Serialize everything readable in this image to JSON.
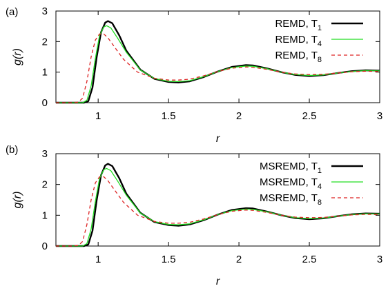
{
  "chart_data": [
    {
      "type": "line",
      "panel_label": "(a)",
      "xlabel": "r",
      "ylabel": "g(r)",
      "xlim": [
        0.7,
        3.0
      ],
      "ylim": [
        0,
        3
      ],
      "xticks": [
        "1",
        "1.5",
        "2",
        "2.5",
        "3"
      ],
      "yticks": [
        "0",
        "1",
        "2",
        "3"
      ],
      "legend_position": "top-right",
      "series": [
        {
          "name": "REMD, T1",
          "name_main": "REMD, T",
          "name_sub": "1",
          "color": "#000000",
          "style": "solid-thick",
          "x": [
            0.7,
            0.85,
            0.9,
            0.93,
            0.96,
            0.99,
            1.02,
            1.05,
            1.07,
            1.1,
            1.15,
            1.2,
            1.3,
            1.4,
            1.5,
            1.57,
            1.65,
            1.75,
            1.85,
            1.95,
            2.05,
            2.1,
            2.2,
            2.3,
            2.4,
            2.5,
            2.6,
            2.7,
            2.8,
            2.9,
            3.0
          ],
          "values": [
            0,
            0,
            0,
            0.05,
            0.5,
            1.5,
            2.3,
            2.62,
            2.67,
            2.6,
            2.2,
            1.7,
            1.08,
            0.78,
            0.68,
            0.66,
            0.7,
            0.84,
            1.02,
            1.17,
            1.23,
            1.22,
            1.12,
            1.0,
            0.91,
            0.87,
            0.9,
            0.97,
            1.03,
            1.06,
            1.05
          ]
        },
        {
          "name": "REMD, T4",
          "name_main": "REMD, T",
          "name_sub": "4",
          "color": "#22dd22",
          "style": "solid",
          "x": [
            0.7,
            0.85,
            0.89,
            0.92,
            0.95,
            0.98,
            1.01,
            1.04,
            1.06,
            1.09,
            1.14,
            1.2,
            1.3,
            1.4,
            1.5,
            1.57,
            1.65,
            1.75,
            1.85,
            1.95,
            2.05,
            2.1,
            2.2,
            2.3,
            2.4,
            2.5,
            2.6,
            2.7,
            2.8,
            2.9,
            3.0
          ],
          "values": [
            0,
            0,
            0,
            0.08,
            0.55,
            1.45,
            2.2,
            2.48,
            2.52,
            2.45,
            2.1,
            1.65,
            1.07,
            0.79,
            0.7,
            0.69,
            0.72,
            0.85,
            1.02,
            1.15,
            1.2,
            1.19,
            1.11,
            1.0,
            0.92,
            0.89,
            0.91,
            0.97,
            1.02,
            1.05,
            1.04
          ]
        },
        {
          "name": "REMD, T8",
          "name_main": "REMD, T",
          "name_sub": "8",
          "color": "#dd2222",
          "style": "dashed",
          "x": [
            0.7,
            0.82,
            0.86,
            0.89,
            0.92,
            0.95,
            0.98,
            1.01,
            1.04,
            1.07,
            1.12,
            1.18,
            1.28,
            1.4,
            1.5,
            1.57,
            1.65,
            1.75,
            1.85,
            1.95,
            2.05,
            2.1,
            2.2,
            2.3,
            2.4,
            2.5,
            2.6,
            2.7,
            2.8,
            2.9,
            3.0
          ],
          "values": [
            0,
            0,
            0.02,
            0.15,
            0.7,
            1.5,
            2.05,
            2.25,
            2.25,
            2.12,
            1.8,
            1.42,
            1.0,
            0.8,
            0.74,
            0.74,
            0.77,
            0.88,
            1.02,
            1.13,
            1.17,
            1.16,
            1.09,
            1.0,
            0.94,
            0.92,
            0.93,
            0.97,
            1.01,
            1.03,
            1.02
          ]
        }
      ]
    },
    {
      "type": "line",
      "panel_label": "(b)",
      "xlabel": "r",
      "ylabel": "g(r)",
      "xlim": [
        0.7,
        3.0
      ],
      "ylim": [
        0,
        3
      ],
      "xticks": [
        "1",
        "1.5",
        "2",
        "2.5",
        "3"
      ],
      "yticks": [
        "0",
        "1",
        "2",
        "3"
      ],
      "legend_position": "top-right",
      "series": [
        {
          "name": "MSREMD, T1",
          "name_main": "MSREMD, T",
          "name_sub": "1",
          "color": "#000000",
          "style": "solid-thick",
          "x": [
            0.7,
            0.85,
            0.9,
            0.93,
            0.96,
            0.99,
            1.02,
            1.05,
            1.07,
            1.1,
            1.15,
            1.2,
            1.3,
            1.4,
            1.5,
            1.57,
            1.65,
            1.75,
            1.85,
            1.95,
            2.05,
            2.1,
            2.2,
            2.3,
            2.4,
            2.5,
            2.6,
            2.7,
            2.8,
            2.9,
            3.0
          ],
          "values": [
            0,
            0,
            0,
            0.05,
            0.5,
            1.5,
            2.3,
            2.62,
            2.67,
            2.6,
            2.2,
            1.7,
            1.08,
            0.78,
            0.68,
            0.66,
            0.7,
            0.84,
            1.02,
            1.17,
            1.23,
            1.22,
            1.12,
            1.0,
            0.91,
            0.87,
            0.9,
            0.97,
            1.03,
            1.06,
            1.05
          ]
        },
        {
          "name": "MSREMD, T4",
          "name_main": "MSREMD, T",
          "name_sub": "4",
          "color": "#22dd22",
          "style": "solid",
          "x": [
            0.7,
            0.85,
            0.89,
            0.92,
            0.95,
            0.98,
            1.01,
            1.04,
            1.06,
            1.09,
            1.14,
            1.2,
            1.3,
            1.4,
            1.5,
            1.57,
            1.65,
            1.75,
            1.85,
            1.95,
            2.05,
            2.1,
            2.2,
            2.3,
            2.4,
            2.5,
            2.6,
            2.7,
            2.8,
            2.9,
            3.0
          ],
          "values": [
            0,
            0,
            0,
            0.08,
            0.55,
            1.45,
            2.2,
            2.48,
            2.52,
            2.45,
            2.1,
            1.65,
            1.07,
            0.79,
            0.7,
            0.69,
            0.72,
            0.85,
            1.02,
            1.15,
            1.2,
            1.19,
            1.11,
            1.0,
            0.92,
            0.89,
            0.91,
            0.97,
            1.02,
            1.05,
            1.04
          ]
        },
        {
          "name": "MSREMD, T8",
          "name_main": "MSREMD, T",
          "name_sub": "8",
          "color": "#dd2222",
          "style": "dashed",
          "x": [
            0.7,
            0.82,
            0.86,
            0.89,
            0.92,
            0.95,
            0.98,
            1.01,
            1.04,
            1.07,
            1.12,
            1.18,
            1.28,
            1.4,
            1.5,
            1.57,
            1.65,
            1.75,
            1.85,
            1.95,
            2.05,
            2.1,
            2.2,
            2.3,
            2.4,
            2.5,
            2.6,
            2.7,
            2.8,
            2.9,
            3.0
          ],
          "values": [
            0,
            0,
            0.02,
            0.15,
            0.7,
            1.5,
            2.05,
            2.25,
            2.25,
            2.12,
            1.8,
            1.42,
            1.0,
            0.8,
            0.74,
            0.74,
            0.77,
            0.88,
            1.02,
            1.13,
            1.17,
            1.16,
            1.09,
            1.0,
            0.94,
            0.92,
            0.93,
            0.97,
            1.01,
            1.03,
            1.02
          ]
        }
      ]
    }
  ]
}
